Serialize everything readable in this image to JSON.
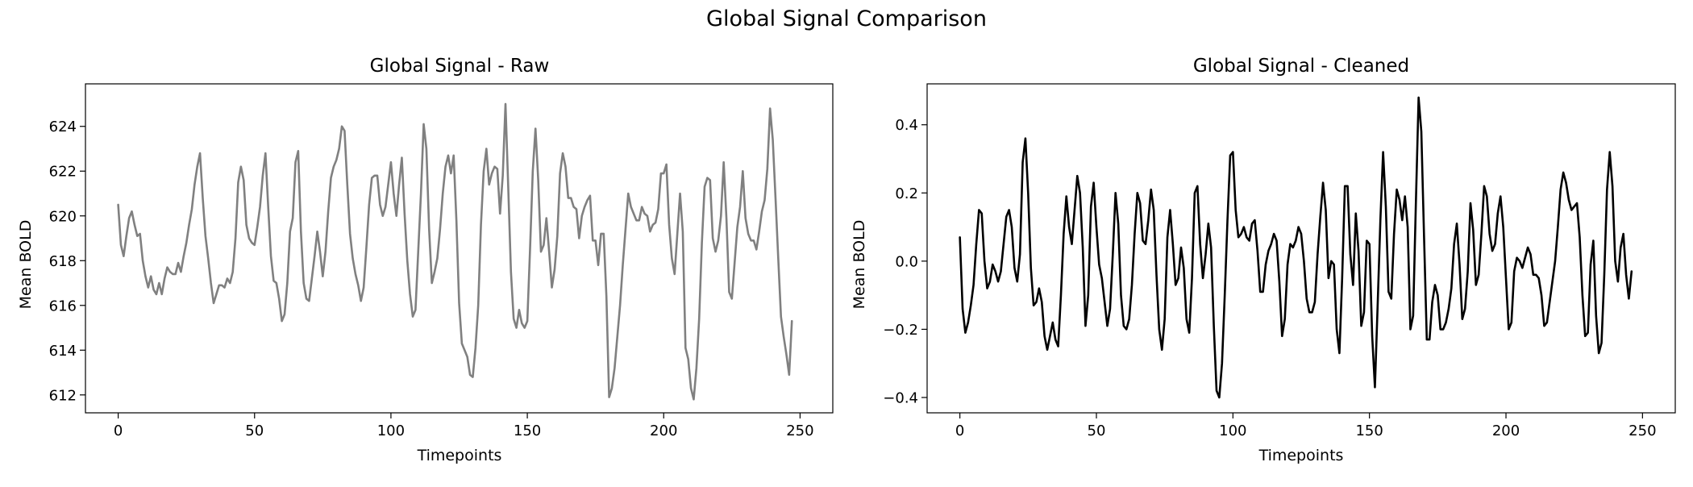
{
  "figure": {
    "suptitle": "Global Signal Comparison"
  },
  "chart_data": [
    {
      "type": "line",
      "title": "Global Signal - Raw",
      "xlabel": "Timepoints",
      "ylabel": "Mean BOLD",
      "xlim": [
        -12,
        262
      ],
      "ylim": [
        611.2,
        625.9
      ],
      "xticks": [
        0,
        50,
        100,
        150,
        200,
        250
      ],
      "xtick_labels": [
        "0",
        "50",
        "100",
        "150",
        "200",
        "250"
      ],
      "yticks": [
        612,
        614,
        616,
        618,
        620,
        622,
        624
      ],
      "ytick_labels": [
        "612",
        "614",
        "616",
        "618",
        "620",
        "622",
        "624"
      ],
      "grid": false,
      "series": [
        {
          "color": "#808080",
          "x_start": 0,
          "x_step": 1,
          "values": [
            620.5,
            618.7,
            618.2,
            619.1,
            619.9,
            620.2,
            619.6,
            619.1,
            619.2,
            618.0,
            617.3,
            616.8,
            617.3,
            616.7,
            616.5,
            617.0,
            616.5,
            617.2,
            617.7,
            617.5,
            617.4,
            617.4,
            617.9,
            617.5,
            618.2,
            618.8,
            619.6,
            620.3,
            621.4,
            622.2,
            622.8,
            620.8,
            619.1,
            618.1,
            617.0,
            616.1,
            616.5,
            616.9,
            616.9,
            616.8,
            617.2,
            617.0,
            617.5,
            619.0,
            621.5,
            622.2,
            621.6,
            619.6,
            619.0,
            618.8,
            618.7,
            619.5,
            620.4,
            621.8,
            622.8,
            620.4,
            618.2,
            617.1,
            617.0,
            616.3,
            615.3,
            615.6,
            617.0,
            619.3,
            619.9,
            622.4,
            622.9,
            619.3,
            617.0,
            616.3,
            616.2,
            617.2,
            618.2,
            619.3,
            618.4,
            617.3,
            618.4,
            620.2,
            621.7,
            622.2,
            622.5,
            623.0,
            624.0,
            623.8,
            621.4,
            619.2,
            618.1,
            617.4,
            616.9,
            616.2,
            616.8,
            618.6,
            620.5,
            621.7,
            621.8,
            621.8,
            620.5,
            620.0,
            620.4,
            621.4,
            622.4,
            621.0,
            620.0,
            621.4,
            622.6,
            620.1,
            618.0,
            616.5,
            615.5,
            615.8,
            618.4,
            621.0,
            624.1,
            623.0,
            619.4,
            617.0,
            617.5,
            618.1,
            619.4,
            621.0,
            622.2,
            622.7,
            621.9,
            622.7,
            619.8,
            616.1,
            614.3,
            614.0,
            613.7,
            612.9,
            612.8,
            614.1,
            616.0,
            619.6,
            622.0,
            623.0,
            621.4,
            621.9,
            622.2,
            622.1,
            620.1,
            621.8,
            625.0,
            621.3,
            617.5,
            615.4,
            615.0,
            615.8,
            615.2,
            615.0,
            615.3,
            618.5,
            622.0,
            623.9,
            621.6,
            618.4,
            618.7,
            619.9,
            618.4,
            616.8,
            617.6,
            619.1,
            621.9,
            622.8,
            622.2,
            620.8,
            620.8,
            620.4,
            620.3,
            619.0,
            620.0,
            620.4,
            620.7,
            620.9,
            618.9,
            618.9,
            617.8,
            619.2,
            619.2,
            616.4,
            611.9,
            612.3,
            613.2,
            614.6,
            616.0,
            617.8,
            619.4,
            621.0,
            620.4,
            620.1,
            619.8,
            619.8,
            620.4,
            620.1,
            620.0,
            619.3,
            619.6,
            619.7,
            620.3,
            621.9,
            621.9,
            622.3,
            619.6,
            618.1,
            617.4,
            619.2,
            621.0,
            619.3,
            614.1,
            613.6,
            612.3,
            611.8,
            613.2,
            615.4,
            618.8,
            621.3,
            621.7,
            621.6,
            619.0,
            618.4,
            618.9,
            620.0,
            622.4,
            619.9,
            616.6,
            616.3,
            617.9,
            619.5,
            620.4,
            622.0,
            619.9,
            619.2,
            618.9,
            618.9,
            618.5,
            619.3,
            620.2,
            620.7,
            622.1,
            624.8,
            623.4,
            620.8,
            618.1,
            615.5,
            614.6,
            613.8,
            612.9,
            615.3
          ]
        }
      ]
    },
    {
      "type": "line",
      "title": "Global Signal - Cleaned",
      "xlabel": "Timepoints",
      "ylabel": "Mean BOLD",
      "xlim": [
        -12,
        262
      ],
      "ylim": [
        -0.445,
        0.52
      ],
      "xticks": [
        0,
        50,
        100,
        150,
        200,
        250
      ],
      "xtick_labels": [
        "0",
        "50",
        "100",
        "150",
        "200",
        "250"
      ],
      "yticks": [
        -0.4,
        -0.2,
        0.0,
        0.2,
        0.4
      ],
      "ytick_labels": [
        "−0.4",
        "−0.2",
        "0.0",
        "0.2",
        "0.4"
      ],
      "grid": false,
      "series": [
        {
          "color": "#000000",
          "x_start": 0,
          "x_step": 1,
          "values": [
            0.07,
            -0.14,
            -0.21,
            -0.18,
            -0.13,
            -0.07,
            0.05,
            0.15,
            0.14,
            0.0,
            -0.08,
            -0.06,
            -0.01,
            -0.03,
            -0.06,
            -0.03,
            0.05,
            0.13,
            0.15,
            0.1,
            -0.02,
            -0.06,
            0.02,
            0.29,
            0.36,
            0.2,
            -0.02,
            -0.13,
            -0.12,
            -0.08,
            -0.12,
            -0.22,
            -0.26,
            -0.22,
            -0.18,
            -0.23,
            -0.25,
            -0.1,
            0.08,
            0.19,
            0.1,
            0.05,
            0.15,
            0.25,
            0.2,
            0.04,
            -0.19,
            -0.1,
            0.16,
            0.23,
            0.1,
            -0.01,
            -0.05,
            -0.12,
            -0.19,
            -0.14,
            0.02,
            0.2,
            0.11,
            -0.1,
            -0.19,
            -0.2,
            -0.17,
            -0.07,
            0.08,
            0.2,
            0.17,
            0.06,
            0.05,
            0.12,
            0.21,
            0.15,
            -0.04,
            -0.2,
            -0.26,
            -0.17,
            0.07,
            0.15,
            0.05,
            -0.07,
            -0.05,
            0.04,
            -0.02,
            -0.17,
            -0.21,
            -0.05,
            0.2,
            0.22,
            0.05,
            -0.05,
            0.02,
            0.11,
            0.04,
            -0.19,
            -0.38,
            -0.4,
            -0.3,
            -0.1,
            0.12,
            0.31,
            0.32,
            0.15,
            0.07,
            0.08,
            0.1,
            0.07,
            0.06,
            0.11,
            0.12,
            0.03,
            -0.09,
            -0.09,
            -0.01,
            0.03,
            0.05,
            0.08,
            0.06,
            -0.06,
            -0.22,
            -0.17,
            -0.01,
            0.05,
            0.04,
            0.06,
            0.1,
            0.08,
            0.0,
            -0.11,
            -0.15,
            -0.15,
            -0.12,
            0.02,
            0.13,
            0.23,
            0.15,
            -0.05,
            0.0,
            -0.01,
            -0.2,
            -0.27,
            -0.05,
            0.22,
            0.22,
            0.02,
            -0.07,
            0.14,
            0.03,
            -0.19,
            -0.15,
            0.06,
            0.05,
            -0.22,
            -0.37,
            -0.13,
            0.12,
            0.32,
            0.16,
            -0.09,
            -0.11,
            0.08,
            0.21,
            0.18,
            0.12,
            0.19,
            0.1,
            -0.2,
            -0.16,
            0.17,
            0.48,
            0.38,
            0.07,
            -0.23,
            -0.23,
            -0.12,
            -0.07,
            -0.1,
            -0.2,
            -0.2,
            -0.18,
            -0.14,
            -0.08,
            0.05,
            0.11,
            -0.01,
            -0.17,
            -0.14,
            -0.03,
            0.17,
            0.09,
            -0.07,
            -0.04,
            0.08,
            0.22,
            0.19,
            0.08,
            0.03,
            0.05,
            0.14,
            0.19,
            0.1,
            -0.05,
            -0.2,
            -0.18,
            -0.03,
            0.01,
            0.0,
            -0.02,
            0.01,
            0.04,
            0.02,
            -0.04,
            -0.04,
            -0.05,
            -0.1,
            -0.19,
            -0.18,
            -0.12,
            -0.06,
            0.0,
            0.1,
            0.21,
            0.26,
            0.23,
            0.18,
            0.15,
            0.16,
            0.17,
            0.07,
            -0.1,
            -0.22,
            -0.21,
            -0.01,
            0.06,
            -0.16,
            -0.27,
            -0.24,
            -0.04,
            0.21,
            0.32,
            0.22,
            0.0,
            -0.06,
            0.04,
            0.08,
            -0.04,
            -0.11,
            -0.03
          ]
        }
      ]
    }
  ]
}
